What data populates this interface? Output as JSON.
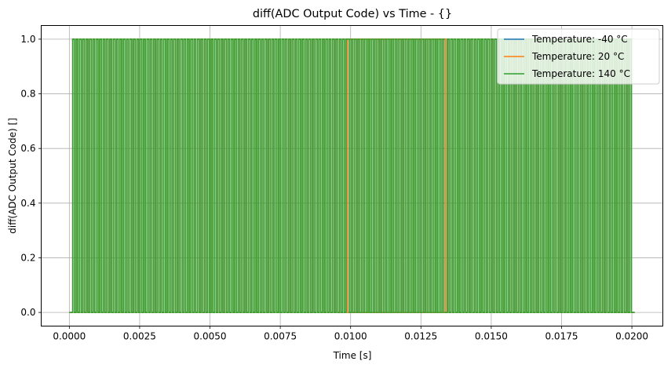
{
  "chart_data": {
    "type": "line",
    "title": "diff(ADC Output Code) vs Time - {}",
    "xlabel": "Time [s]",
    "ylabel": "diff(ADC Output Code) []",
    "xlim": [
      -0.001,
      0.0211
    ],
    "ylim": [
      -0.05,
      1.05
    ],
    "x_ticks": [
      0.0,
      0.0025,
      0.005,
      0.0075,
      0.01,
      0.0125,
      0.015,
      0.0175,
      0.02
    ],
    "x_tick_labels": [
      "0.0000",
      "0.0025",
      "0.0050",
      "0.0075",
      "0.0100",
      "0.0125",
      "0.0150",
      "0.0175",
      "0.0200"
    ],
    "y_ticks": [
      0.0,
      0.2,
      0.4,
      0.6,
      0.8,
      1.0
    ],
    "y_tick_labels": [
      "0.0",
      "0.2",
      "0.4",
      "0.6",
      "0.8",
      "1.0"
    ],
    "grid": true,
    "legend_position": "top-right",
    "signal": {
      "x_start": 0.0,
      "x_rise": 0.00012,
      "x_end": 0.02,
      "x_tail_end": 0.0201,
      "pulse_period": 0.00012,
      "values": [
        0,
        1
      ]
    },
    "series": [
      {
        "name": "Temperature: -40 °C",
        "color": "#1f77b4"
      },
      {
        "name": "Temperature: 20 °C",
        "color": "#ff7f0e"
      },
      {
        "name": "Temperature: 140 °C",
        "color": "#2ca02c"
      }
    ],
    "visible_orange_gaps": [
      0.0099,
      0.0134
    ]
  }
}
